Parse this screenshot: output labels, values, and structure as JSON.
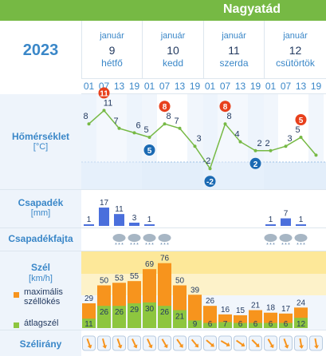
{
  "header": {
    "city": "Nagyatád",
    "year": "2023"
  },
  "days": [
    {
      "month": "január",
      "day": "9",
      "weekday": "hétfő"
    },
    {
      "month": "január",
      "day": "10",
      "weekday": "kedd"
    },
    {
      "month": "január",
      "day": "11",
      "weekday": "szerda"
    },
    {
      "month": "január",
      "day": "12",
      "weekday": "csütörtök"
    }
  ],
  "hours": [
    "01",
    "07",
    "13",
    "19",
    "01",
    "07",
    "13",
    "19",
    "01",
    "07",
    "13",
    "19",
    "01",
    "07",
    "13",
    "19"
  ],
  "labels": {
    "temp_title": "Hőmérséklet",
    "temp_unit": "[°C]",
    "precip_title": "Csapadék",
    "precip_unit": "[mm]",
    "precip_type_title": "Csapadékfajta",
    "wind_title": "Szél",
    "wind_unit": "[km/h]",
    "legend_gust": "maximális széllökés",
    "legend_avg": "átlagszél",
    "wind_dir_title": "Szélirány"
  },
  "colors": {
    "brand": "#76b944",
    "accent": "#3a87c8",
    "gust": "#f7941d",
    "avg": "#8dc63f",
    "max_marker": "#e8401c",
    "min_marker": "#1b6ab3"
  },
  "chart_data": [
    {
      "type": "line",
      "name": "temperature",
      "values": [
        8,
        11,
        7,
        6,
        5,
        8,
        7,
        3,
        -2,
        8,
        4,
        2,
        2,
        3,
        5,
        1
      ],
      "max_markers": [
        {
          "index": 1,
          "value": "11"
        },
        {
          "index": 5,
          "value": "8"
        },
        {
          "index": 9,
          "value": "8"
        },
        {
          "index": 14,
          "value": "5"
        }
      ],
      "min_markers": [
        {
          "index": 4,
          "value": "5"
        },
        {
          "index": 8,
          "value": "-2"
        },
        {
          "index": 11,
          "value": "2"
        }
      ],
      "labels": [
        "8",
        "11",
        "7",
        "6",
        "5",
        "8",
        "7",
        "3",
        "-2",
        "8",
        "4",
        "2",
        "2",
        "3",
        "5",
        ""
      ]
    },
    {
      "type": "bar",
      "name": "precipitation",
      "values": [
        1,
        17,
        11,
        3,
        1,
        null,
        null,
        null,
        null,
        null,
        null,
        null,
        1,
        7,
        1,
        null
      ],
      "labels": [
        "1",
        "17",
        "11",
        "3",
        "1",
        "",
        "",
        "",
        "",
        "",
        "",
        "",
        "1",
        "7",
        "1",
        ""
      ]
    },
    {
      "type": "bar",
      "name": "wind",
      "gust": [
        29,
        50,
        53,
        55,
        69,
        76,
        50,
        39,
        26,
        16,
        15,
        21,
        18,
        17,
        24,
        null
      ],
      "avg": [
        11,
        26,
        26,
        29,
        30,
        26,
        21,
        9,
        6,
        7,
        6,
        6,
        6,
        6,
        12,
        null
      ]
    }
  ],
  "precip_type_icons": [
    "snow-rain-icon",
    "snow-rain-icon",
    "snow-rain-icon",
    "snow-rain-icon",
    "snow-rain-icon",
    "snow-rain-icon",
    "snow-rain-icon"
  ],
  "wind_dir_icons": [
    "arrow-icon",
    "arrow-icon",
    "arrow-icon",
    "arrow-icon",
    "arrow-icon",
    "arrow-icon",
    "arrow-icon",
    "arrow-icon",
    "arrow-icon",
    "arrow-icon",
    "arrow-icon",
    "arrow-icon",
    "arrow-icon",
    "arrow-icon",
    "arrow-icon",
    "arrow-icon"
  ]
}
